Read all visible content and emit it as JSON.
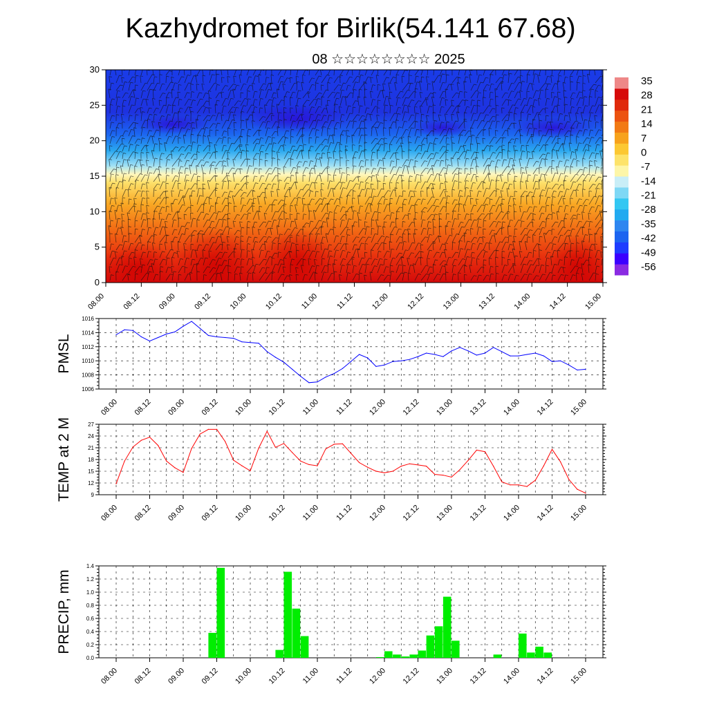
{
  "header": {
    "title": "Kazhydromet for Birlik(54.141 67.68)",
    "subtitle": "08 ☆☆☆☆☆☆☆☆ 2025"
  },
  "colors": {
    "pmsl_line": "#0000ff",
    "temp_line": "#ff0000",
    "precip_bar": "#00ee00",
    "colorbar": [
      "#8a2be2",
      "#3b00ff",
      "#1e3cff",
      "#1c64f0",
      "#2e86f0",
      "#22aaf0",
      "#33c7f2",
      "#7fd8f5",
      "#c9eef7",
      "#fdf6a8",
      "#fde36a",
      "#fcc832",
      "#f7a21c",
      "#f27a14",
      "#ec5310",
      "#e02a0c",
      "#d60a0a",
      "#ee8888"
    ]
  },
  "chart_data": [
    {
      "id": "section",
      "type": "heatmap",
      "xlabel": "",
      "ylabel": "",
      "ylim": [
        0,
        30
      ],
      "yticks": [
        0,
        5,
        10,
        15,
        20,
        25,
        30
      ],
      "xticks": [
        "08.00",
        "08.12",
        "09.00",
        "09.12",
        "10.00",
        "10.12",
        "11.00",
        "11.12",
        "12.00",
        "12.12",
        "13.00",
        "13.12",
        "14.00",
        "14.12",
        "15.00"
      ],
      "colorbar_labels": [
        "35",
        "28",
        "21",
        "14",
        "7",
        "0",
        "-7",
        "-14",
        "-21",
        "-28",
        "-35",
        "-42",
        "-49",
        "-56"
      ]
    },
    {
      "id": "pmsl",
      "type": "line",
      "ylabel": "PMSL",
      "ylim": [
        1006,
        1016
      ],
      "yticks": [
        1006,
        1008,
        1010,
        1012,
        1014,
        1016
      ],
      "xticks": [
        "08.00",
        "08.12",
        "09.00",
        "09.12",
        "10.00",
        "10.12",
        "11.00",
        "11.12",
        "12.00",
        "12.12",
        "13.00",
        "13.12",
        "14.00",
        "14.12",
        "15.00"
      ],
      "values": [
        1013.7,
        1014.4,
        1014.3,
        1013.4,
        1012.8,
        1013.3,
        1013.8,
        1014.1,
        1014.9,
        1015.6,
        1014.6,
        1013.6,
        1013.4,
        1013.3,
        1013.2,
        1012.7,
        1012.6,
        1012.5,
        1011.3,
        1010.5,
        1009.8,
        1008.8,
        1007.8,
        1006.9,
        1007.0,
        1007.7,
        1008.2,
        1008.9,
        1009.9,
        1010.9,
        1010.4,
        1009.2,
        1009.4,
        1009.9,
        1010.0,
        1010.2,
        1010.6,
        1011.1,
        1010.9,
        1010.6,
        1011.4,
        1011.9,
        1011.4,
        1010.8,
        1011.1,
        1011.9,
        1011.3,
        1010.7,
        1010.7,
        1010.9,
        1011.1,
        1010.7,
        1009.9,
        1010.0,
        1009.4,
        1008.7,
        1008.8
      ]
    },
    {
      "id": "temp",
      "type": "line",
      "ylabel": "TEMP at 2 M",
      "ylim": [
        9,
        27
      ],
      "yticks": [
        9,
        12,
        15,
        18,
        21,
        24,
        27
      ],
      "xticks": [
        "08.00",
        "08.12",
        "09.00",
        "09.12",
        "10.00",
        "10.12",
        "11.00",
        "11.12",
        "12.00",
        "12.12",
        "13.00",
        "13.12",
        "14.00",
        "14.12",
        "15.00"
      ],
      "values": [
        11.8,
        17.6,
        21.2,
        22.9,
        23.7,
        21.6,
        17.6,
        15.9,
        14.7,
        20.8,
        24.5,
        25.7,
        25.7,
        22.6,
        17.8,
        16.4,
        15.1,
        20.9,
        25.2,
        21.1,
        22.1,
        19.8,
        17.6,
        16.7,
        16.4,
        20.7,
        21.9,
        22.0,
        19.6,
        17.2,
        16.0,
        15.0,
        14.6,
        15.0,
        16.3,
        16.9,
        16.6,
        16.3,
        14.2,
        14.0,
        13.5,
        15.4,
        17.8,
        20.4,
        20.0,
        16.3,
        12.3,
        11.5,
        11.5,
        11.1,
        12.7,
        16.4,
        20.6,
        17.4,
        12.9,
        10.4,
        9.4
      ]
    },
    {
      "id": "precip",
      "type": "bar",
      "ylabel": "PRECIP, mm",
      "ylim": [
        0,
        1.4
      ],
      "yticks": [
        "0.0",
        "0.2",
        "0.4",
        "0.6",
        "0.8",
        "1.0",
        "1.2",
        "1.4"
      ],
      "xticks": [
        "08.00",
        "08.12",
        "09.00",
        "09.12",
        "10.00",
        "10.12",
        "11.00",
        "11.12",
        "12.00",
        "12.12",
        "13.00",
        "13.12",
        "14.00",
        "14.12",
        "15.00"
      ],
      "values": [
        0,
        0,
        0,
        0,
        0,
        0,
        0,
        0,
        0,
        0,
        0,
        0.38,
        1.37,
        0,
        0,
        0,
        0,
        0,
        0,
        0.12,
        1.31,
        0.75,
        0.33,
        0,
        0,
        0,
        0,
        0,
        0,
        0,
        0,
        0.01,
        0.1,
        0.05,
        0.02,
        0.05,
        0.11,
        0.34,
        0.48,
        0.93,
        0.26,
        0,
        0,
        0,
        0,
        0.05,
        0,
        0,
        0.37,
        0.08,
        0.17,
        0.08,
        0,
        0,
        0,
        0
      ]
    }
  ]
}
